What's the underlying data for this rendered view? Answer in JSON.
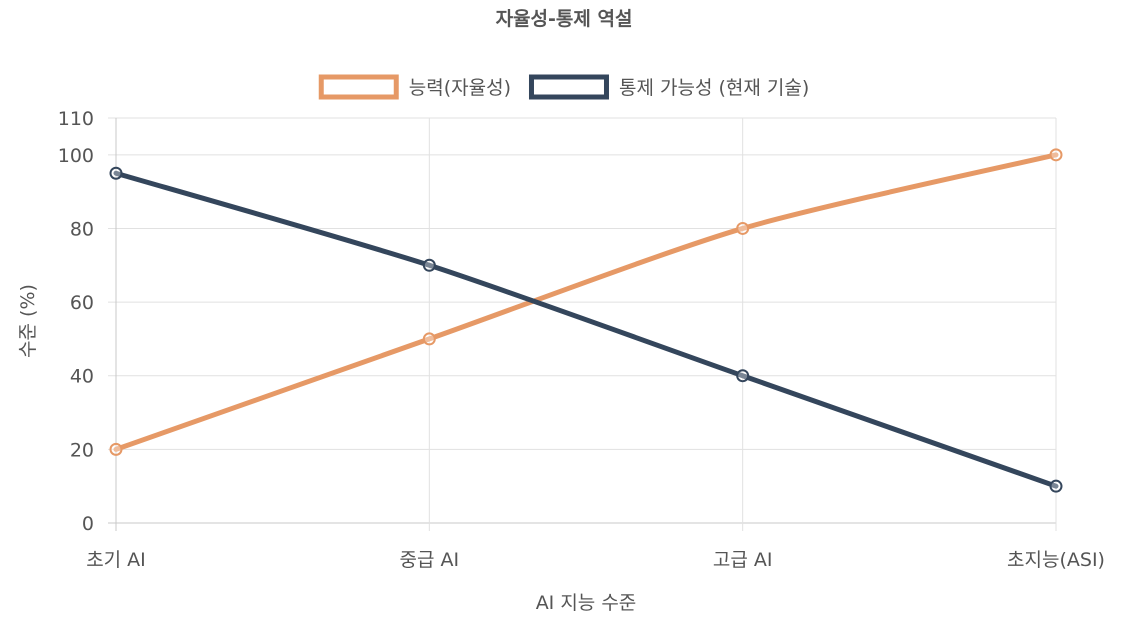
{
  "chart_data": {
    "type": "line",
    "title": "자율성-통제 역설",
    "xlabel": "AI 지능 수준",
    "ylabel": "수준 (%)",
    "categories": [
      "초기 AI",
      "중급 AI",
      "고급 AI",
      "초지능(ASI)"
    ],
    "ylim": [
      0,
      110
    ],
    "yticks": [
      0,
      20,
      40,
      60,
      80,
      100,
      110
    ],
    "grid": true,
    "legend_position": "top",
    "series": [
      {
        "name": "능력(자율성)",
        "values": [
          20,
          50,
          80,
          100
        ],
        "color": "#e69966"
      },
      {
        "name": "통제 가능성 (현재 기술)",
        "values": [
          95,
          70,
          40,
          10
        ],
        "color": "#34465c"
      }
    ]
  }
}
